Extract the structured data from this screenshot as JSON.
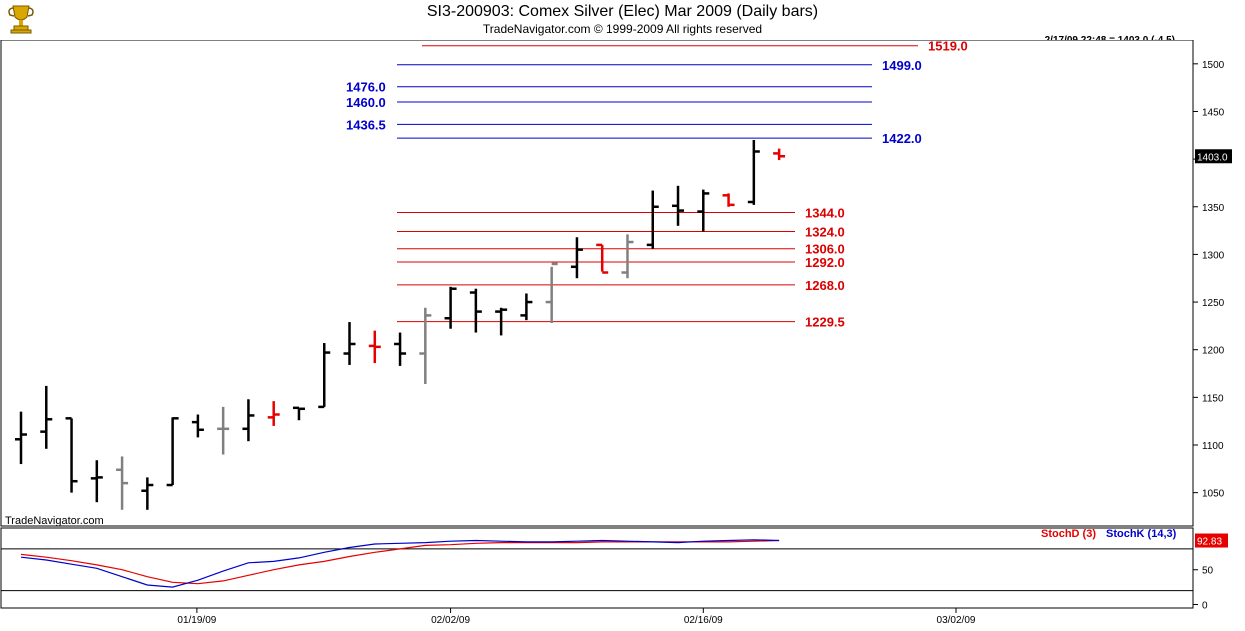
{
  "header": {
    "title": "SI3-200903:  Comex Silver (Elec) Mar 2009  (Daily bars)",
    "copyright": "TradeNavigator.com © 1999-2009 All rights reserved",
    "quote": "2/17/09 22:48 = 1403.0 (-4.5)",
    "watermark": "TradeNavigator.com"
  },
  "colors": {
    "up_bar": "#000000",
    "neutral_bar": "#808080",
    "down_bar": "#e60000",
    "fib_blue": "#0000cc",
    "fib_red": "#dd0000",
    "stoch_d": "#e60000",
    "stoch_k": "#0000cc"
  },
  "chart_data": {
    "type": "ohlc",
    "y_range": [
      1015,
      1525
    ],
    "y_ticks": [
      1050,
      1100,
      1150,
      1200,
      1250,
      1300,
      1350,
      1400,
      1450,
      1500
    ],
    "x_tick_labels": [
      "01/19/09",
      "02/02/09",
      "02/16/09",
      "03/02/09"
    ],
    "last_price_label": "1403.0",
    "bars": [
      {
        "o": 1106,
        "h": 1135,
        "l": 1080,
        "c": 1111,
        "color": "black"
      },
      {
        "o": 1114,
        "h": 1162,
        "l": 1096,
        "c": 1127,
        "color": "black"
      },
      {
        "o": 1128,
        "h": 1128,
        "l": 1050,
        "c": 1062,
        "color": "black"
      },
      {
        "o": 1065,
        "h": 1084,
        "l": 1040,
        "c": 1066,
        "color": "black"
      },
      {
        "o": 1074,
        "h": 1088,
        "l": 1032,
        "c": 1060,
        "color": "gray"
      },
      {
        "o": 1052,
        "h": 1066,
        "l": 1032,
        "c": 1058,
        "color": "black"
      },
      {
        "o": 1058,
        "h": 1129,
        "l": 1058,
        "c": 1128,
        "color": "black"
      },
      {
        "o": 1124,
        "h": 1132,
        "l": 1108,
        "c": 1116,
        "color": "black"
      },
      {
        "o": 1117,
        "h": 1140,
        "l": 1090,
        "c": 1117,
        "color": "gray"
      },
      {
        "o": 1117,
        "h": 1148,
        "l": 1104,
        "c": 1131,
        "color": "black"
      },
      {
        "o": 1129,
        "h": 1146,
        "l": 1120,
        "c": 1132,
        "color": "red"
      },
      {
        "o": 1139,
        "h": 1139,
        "l": 1126,
        "c": 1138,
        "color": "black"
      },
      {
        "o": 1140,
        "h": 1207,
        "l": 1140,
        "c": 1197,
        "color": "black"
      },
      {
        "o": 1196,
        "h": 1229,
        "l": 1184,
        "c": 1206,
        "color": "black"
      },
      {
        "o": 1204,
        "h": 1220,
        "l": 1186,
        "c": 1203,
        "color": "red"
      },
      {
        "o": 1206,
        "h": 1218,
        "l": 1183,
        "c": 1196,
        "color": "black"
      },
      {
        "o": 1196,
        "h": 1244,
        "l": 1164,
        "c": 1236,
        "color": "gray"
      },
      {
        "o": 1233,
        "h": 1266,
        "l": 1222,
        "c": 1264,
        "color": "black"
      },
      {
        "o": 1260,
        "h": 1264,
        "l": 1218,
        "c": 1240,
        "color": "black"
      },
      {
        "o": 1240,
        "h": 1244,
        "l": 1215,
        "c": 1242,
        "color": "black"
      },
      {
        "o": 1236,
        "h": 1259,
        "l": 1231,
        "c": 1250,
        "color": "black"
      },
      {
        "o": 1250,
        "h": 1287,
        "l": 1228,
        "c": 1290,
        "color": "gray"
      },
      {
        "o": 1287,
        "h": 1318,
        "l": 1275,
        "c": 1305,
        "color": "black"
      },
      {
        "o": 1310,
        "h": 1310,
        "l": 1282,
        "c": 1281,
        "color": "red"
      },
      {
        "o": 1281,
        "h": 1321,
        "l": 1275,
        "c": 1313,
        "color": "gray"
      },
      {
        "o": 1310,
        "h": 1367,
        "l": 1306,
        "c": 1350,
        "color": "black"
      },
      {
        "o": 1351,
        "h": 1372,
        "l": 1330,
        "c": 1346,
        "color": "black"
      },
      {
        "o": 1345,
        "h": 1368,
        "l": 1324,
        "c": 1364,
        "color": "black"
      },
      {
        "o": 1362,
        "h": 1364,
        "l": 1350,
        "c": 1352,
        "color": "red"
      },
      {
        "o": 1355,
        "h": 1420,
        "l": 1352,
        "c": 1408,
        "color": "black"
      },
      {
        "o": 1406,
        "h": 1411,
        "l": 1399,
        "c": 1403,
        "color": "red"
      }
    ],
    "levels": [
      {
        "value": 1519.0,
        "label": "1519.0",
        "color": "red",
        "side": "right"
      },
      {
        "value": 1499.0,
        "label": "1499.0",
        "color": "blue",
        "side": "right"
      },
      {
        "value": 1476.0,
        "label": "1476.0",
        "color": "blue",
        "side": "left"
      },
      {
        "value": 1460.0,
        "label": "1460.0",
        "color": "blue",
        "side": "left"
      },
      {
        "value": 1436.5,
        "label": "1436.5",
        "color": "blue",
        "side": "left"
      },
      {
        "value": 1422.0,
        "label": "1422.0",
        "color": "blue",
        "side": "right"
      },
      {
        "value": 1344.0,
        "label": "1344.0",
        "color": "red",
        "side": "right"
      },
      {
        "value": 1324.0,
        "label": "1324.0",
        "color": "red",
        "side": "right"
      },
      {
        "value": 1306.0,
        "label": "1306.0",
        "color": "red",
        "side": "right"
      },
      {
        "value": 1292.0,
        "label": "1292.0",
        "color": "red",
        "side": "right"
      },
      {
        "value": 1268.0,
        "label": "1268.0",
        "color": "red",
        "side": "right"
      },
      {
        "value": 1229.5,
        "label": "1229.5",
        "color": "red",
        "side": "right"
      }
    ],
    "stochastic": {
      "legend_d": "StochD (3)",
      "legend_k": "StochK (14,3)",
      "last_value_label": "92.83",
      "y_range": [
        -5,
        110
      ],
      "y_ticks": [
        0,
        50
      ],
      "ref_lines": [
        20,
        80
      ],
      "d": [
        72,
        68,
        63,
        57,
        50,
        40,
        32,
        30,
        34,
        42,
        50,
        57,
        62,
        69,
        75,
        80,
        85,
        86,
        88,
        89,
        89,
        89,
        89,
        90,
        90,
        90,
        90,
        90,
        90,
        91,
        92
      ],
      "k": [
        68,
        64,
        58,
        52,
        40,
        28,
        25,
        35,
        48,
        60,
        62,
        67,
        75,
        82,
        87,
        88,
        89,
        91,
        92,
        91,
        90,
        90,
        91,
        92,
        91,
        90,
        89,
        91,
        92,
        93,
        92
      ]
    }
  }
}
